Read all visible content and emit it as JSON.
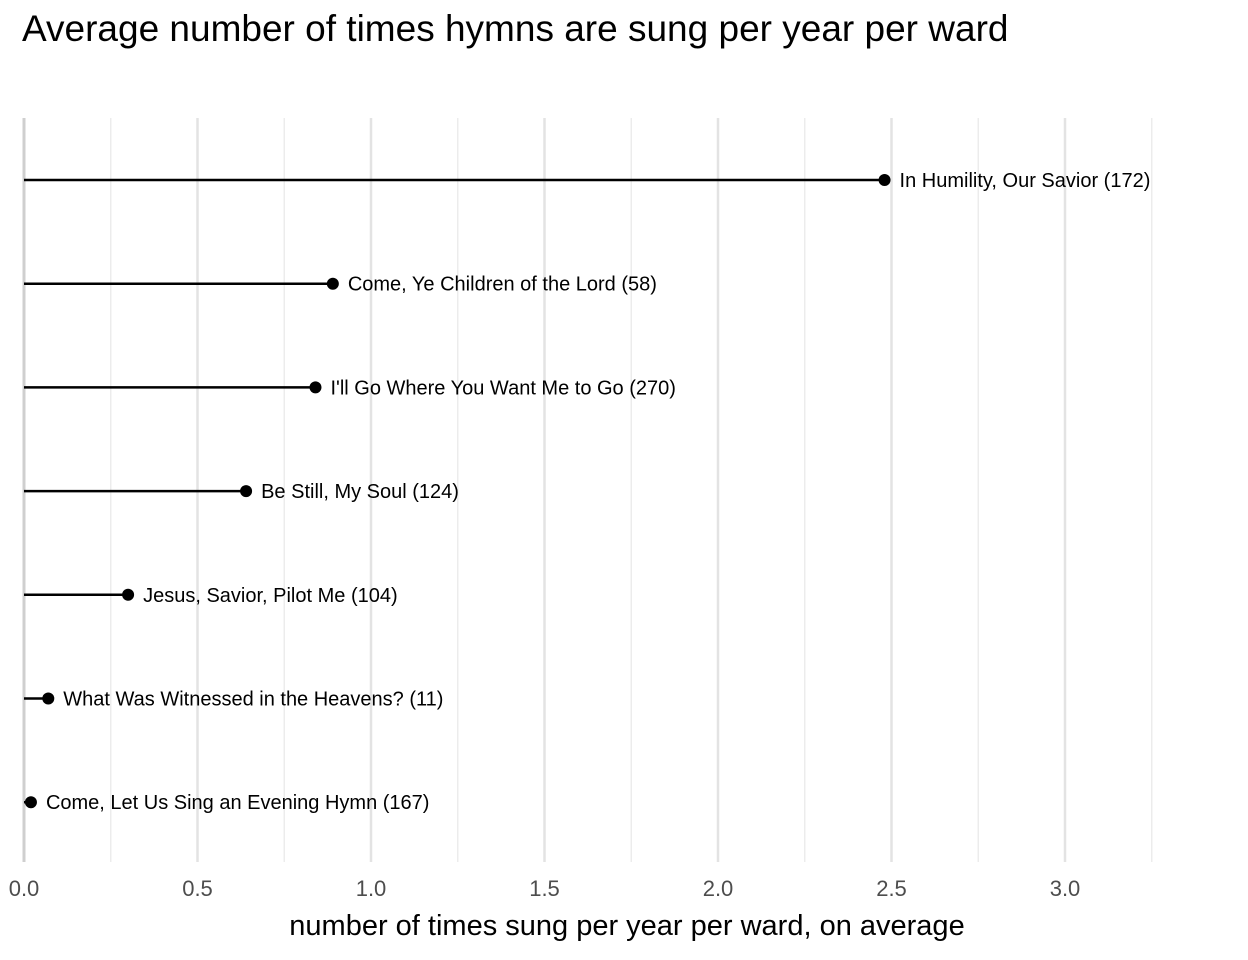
{
  "chart_data": {
    "type": "lollipop",
    "title": "Average number of times hymns are sung per year per ward",
    "xlabel": "number of times sung per year per ward, on average",
    "ylabel": "",
    "xlim": [
      0,
      3.3
    ],
    "x_ticks": [
      "0.0",
      "0.5",
      "1.0",
      "1.5",
      "2.0",
      "2.5",
      "3.0"
    ],
    "x_tick_values": [
      0,
      0.5,
      1.0,
      1.5,
      2.0,
      2.5,
      3.0
    ],
    "x_minor_grid": [
      0.25,
      0.75,
      1.25,
      1.75,
      2.25,
      2.75,
      3.25
    ],
    "grid": true,
    "legend": "none",
    "points": [
      {
        "label": "In Humility, Our Savior (172)",
        "value": 2.48
      },
      {
        "label": "Come, Ye Children of the Lord (58)",
        "value": 0.89
      },
      {
        "label": "I'll Go Where You Want Me to Go (270)",
        "value": 0.84
      },
      {
        "label": "Be Still, My Soul (124)",
        "value": 0.64
      },
      {
        "label": "Jesus, Savior, Pilot Me (104)",
        "value": 0.3
      },
      {
        "label": "What Was Witnessed in the Heavens? (11)",
        "value": 0.07
      },
      {
        "label": "Come, Let Us Sing an Evening Hymn (167)",
        "value": 0.02
      }
    ]
  }
}
